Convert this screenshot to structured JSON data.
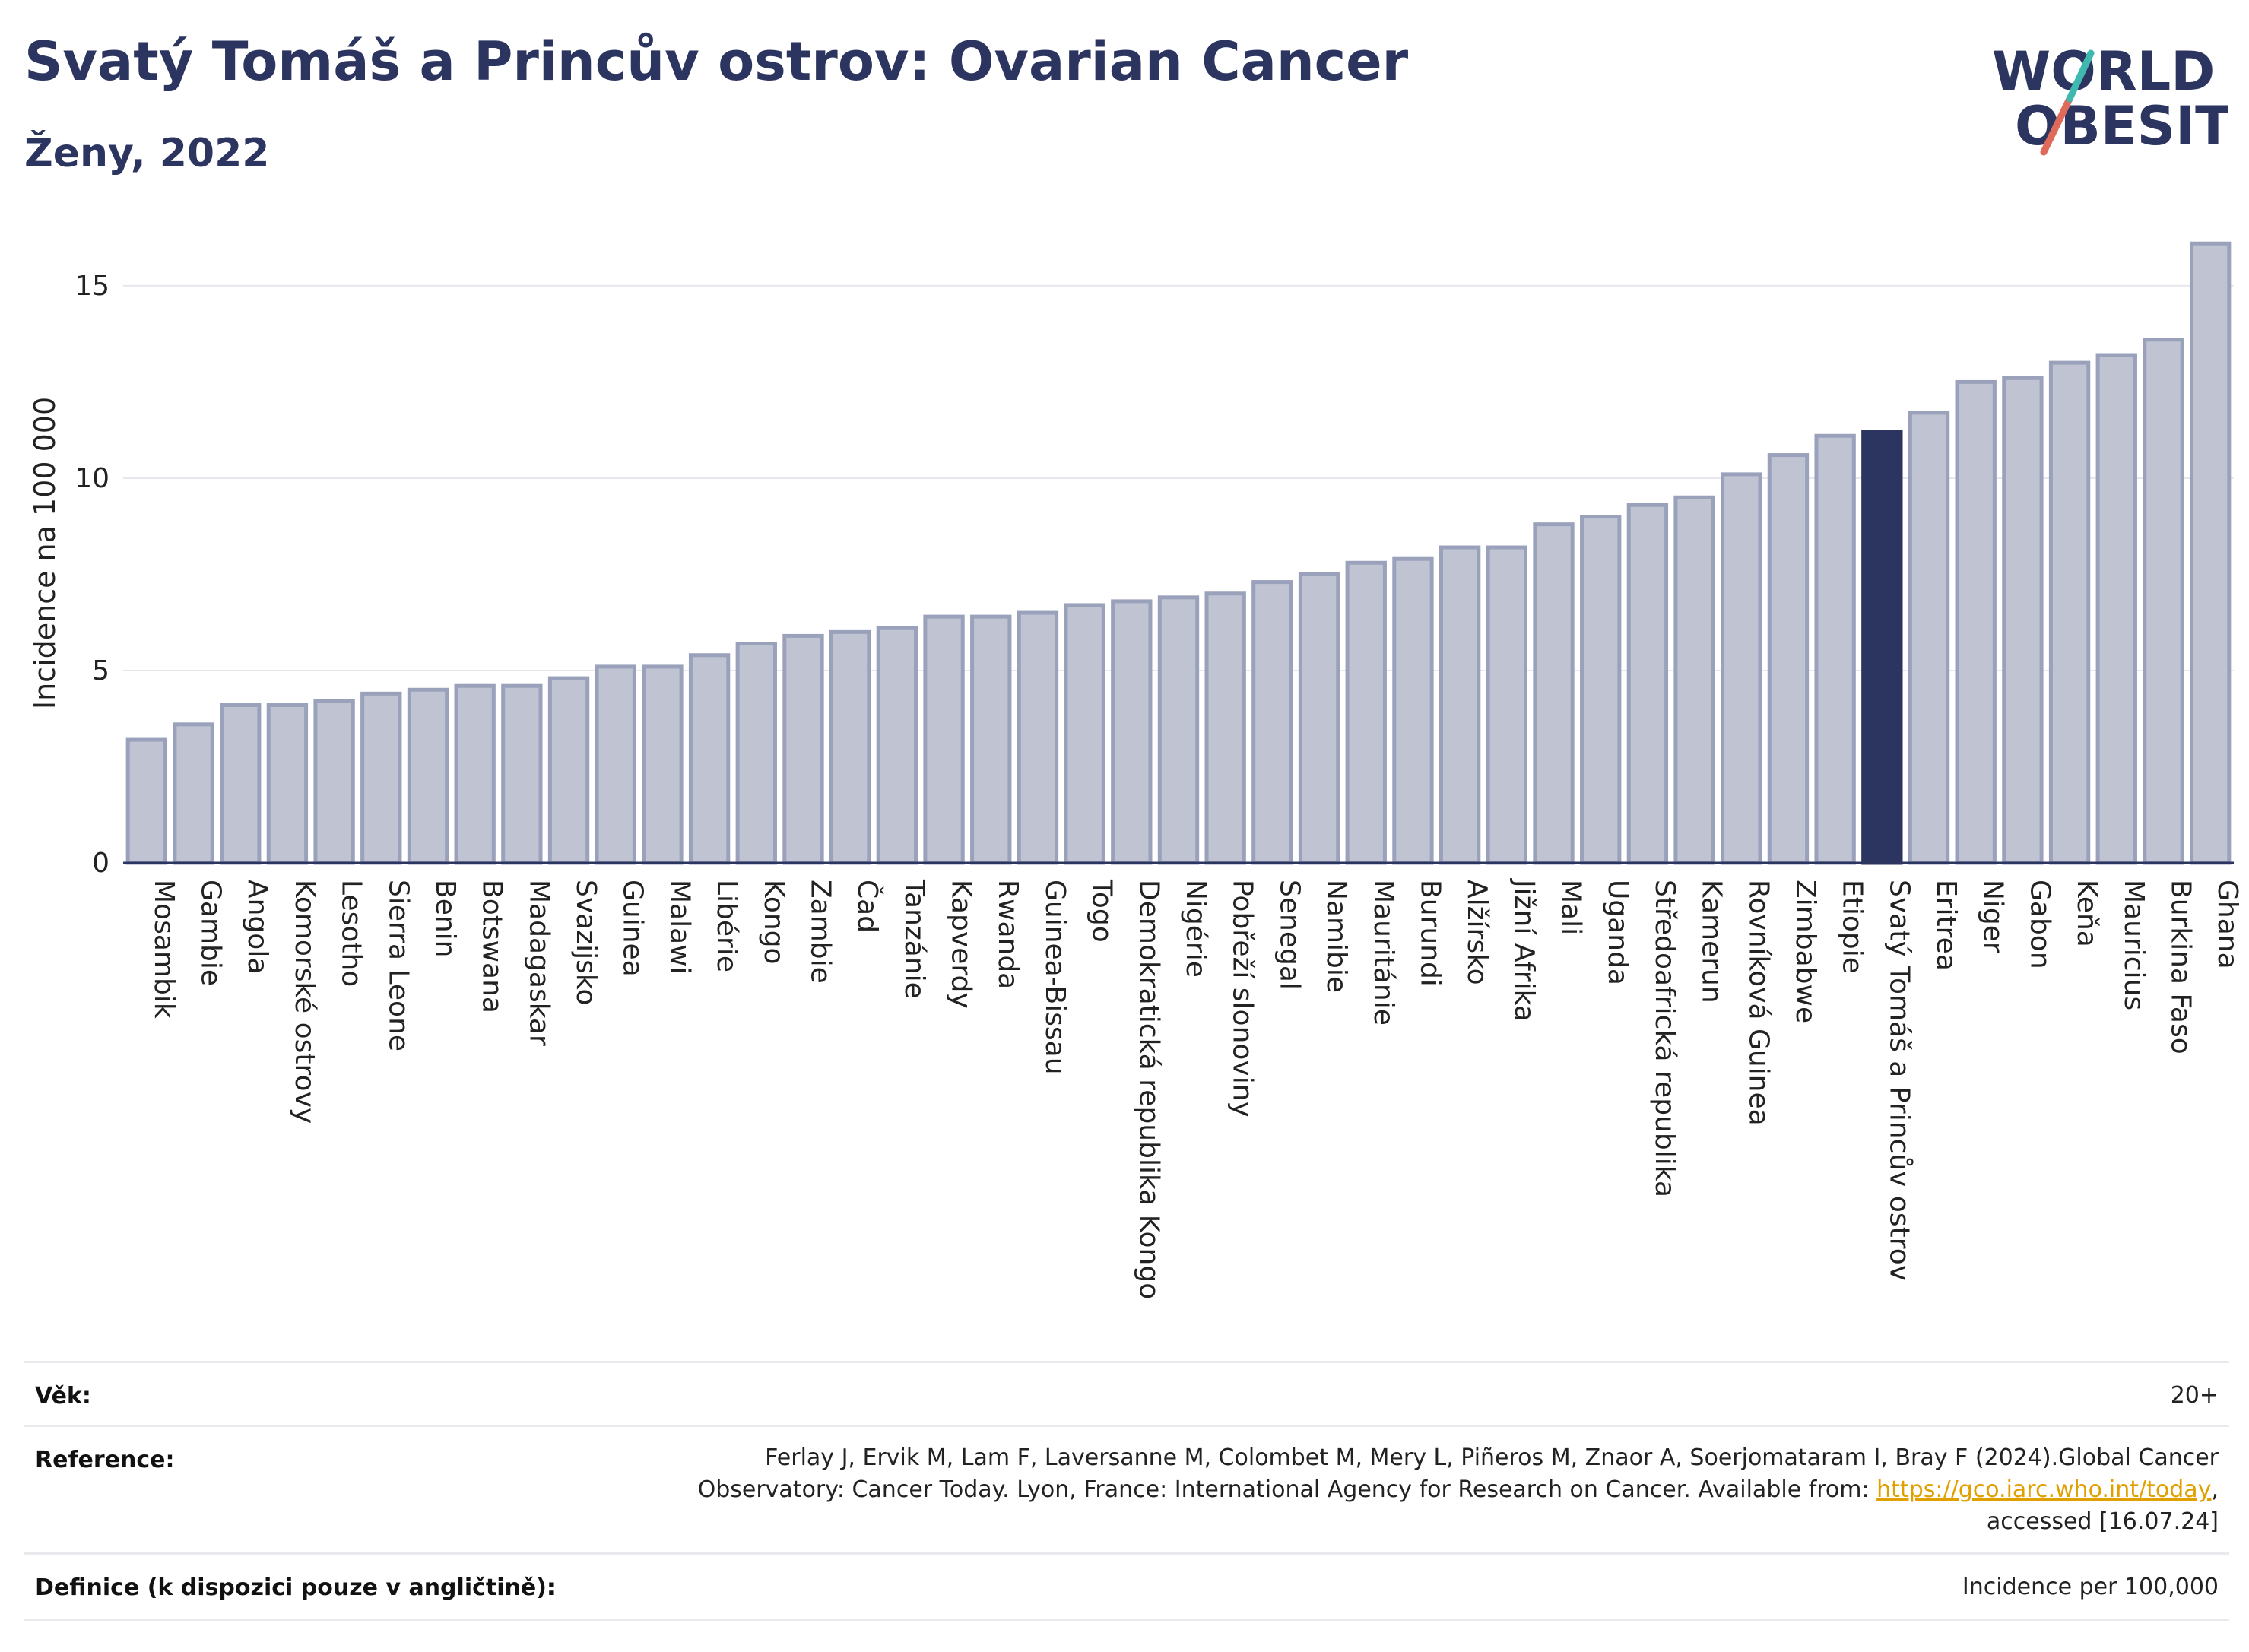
{
  "title": "Svatý Tomáš a Princův ostrov: Ovarian Cancer",
  "subtitle": "Ženy, 2022",
  "logo": {
    "line1": "WORLD",
    "line2": "OBESITY"
  },
  "colors": {
    "bar": "#bfc3d2",
    "bar_edge": "#9aa1bb",
    "highlight": "#2b3560",
    "text": "#2b3560"
  },
  "chart_data": {
    "type": "bar",
    "ylabel": "Incidence na 100 000",
    "ylim": [
      0,
      16.5
    ],
    "yticks": [
      0,
      5,
      10,
      15
    ],
    "grid": true,
    "highlight": "Svatý Tomáš a Princův ostrov",
    "categories": [
      "Mosambik",
      "Gambie",
      "Angola",
      "Komorské ostrovy",
      "Lesotho",
      "Sierra Leone",
      "Benin",
      "Botswana",
      "Madagaskar",
      "Svazijsko",
      "Guinea",
      "Malawi",
      "Libérie",
      "Kongo",
      "Zambie",
      "Čad",
      "Tanzánie",
      "Kapverdy",
      "Rwanda",
      "Guinea-Bissau",
      "Togo",
      "Demokratická republika Kongo",
      "Nigérie",
      "Pobřeží slonoviny",
      "Senegal",
      "Namibie",
      "Mauritánie",
      "Burundi",
      "Alžírsko",
      "Jižní Afrika",
      "Mali",
      "Uganda",
      "Středoafrická republika",
      "Kamerun",
      "Rovníková Guinea",
      "Zimbabwe",
      "Etiopie",
      "Svatý Tomáš a Princův ostrov",
      "Eritrea",
      "Niger",
      "Gabon",
      "Keňa",
      "Mauricius",
      "Burkina Faso",
      "Ghana"
    ],
    "values": [
      3.2,
      3.6,
      4.1,
      4.1,
      4.2,
      4.4,
      4.5,
      4.6,
      4.6,
      4.8,
      5.1,
      5.1,
      5.4,
      5.7,
      5.9,
      6.0,
      6.1,
      6.4,
      6.4,
      6.5,
      6.7,
      6.8,
      6.9,
      7.0,
      7.3,
      7.5,
      7.8,
      7.9,
      8.2,
      8.2,
      8.8,
      9.0,
      9.3,
      9.5,
      10.1,
      10.6,
      11.1,
      11.2,
      11.7,
      12.5,
      12.6,
      13.0,
      13.2,
      13.6,
      16.1
    ]
  },
  "info": {
    "age_label": "Věk:",
    "age_value": "20+",
    "ref_label": "Reference:",
    "ref_line1": "Ferlay J, Ervik M, Lam F, Laversanne M, Colombet M, Mery L, Piñeros M, Znaor A, Soerjomataram I, Bray F (2024).Global Cancer",
    "ref_line2_pre": "Observatory: Cancer Today. Lyon, France: International Agency for Research on Cancer. Available from: ",
    "ref_link": "https://gco.iarc.who.int/today",
    "ref_line2_post": ",",
    "ref_line3": "accessed [16.07.24]",
    "def_label": "Definice (k dispozici pouze v angličtině):",
    "def_value": "Incidence per 100,000"
  }
}
